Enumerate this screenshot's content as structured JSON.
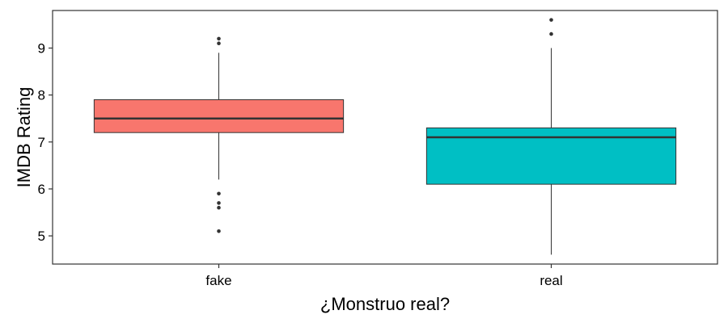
{
  "chart_data": {
    "type": "box",
    "xlabel": "¿Monstruo real?",
    "ylabel": "IMDB Rating",
    "categories": [
      "fake",
      "real"
    ],
    "ylim": [
      4.4,
      9.8
    ],
    "yticks": [
      5,
      6,
      7,
      8,
      9
    ],
    "grid": false,
    "boxes": [
      {
        "category": "fake",
        "color": "#F8766D",
        "whisker_low": 6.2,
        "q1": 7.2,
        "median": 7.5,
        "q3": 7.9,
        "whisker_high": 8.9,
        "outliers": [
          9.2,
          9.1,
          5.9,
          5.7,
          5.6,
          5.1
        ]
      },
      {
        "category": "real",
        "color": "#00BFC4",
        "whisker_low": 4.6,
        "q1": 6.1,
        "median": 7.1,
        "q3": 7.3,
        "whisker_high": 9.0,
        "outliers": [
          9.6,
          9.3
        ]
      }
    ]
  }
}
